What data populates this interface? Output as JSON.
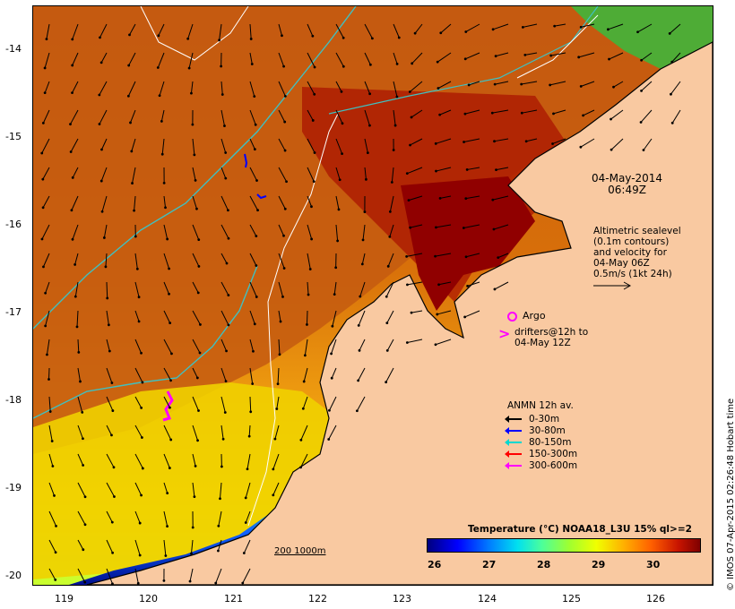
{
  "map": {
    "timestamp_date": "04-May-2014",
    "timestamp_time": "06:49Z",
    "altimetry": {
      "line1": "Altimetric sealevel",
      "line2": "(0.1m contours)",
      "line3": "and velocity for",
      "line4": "04-May 06Z",
      "line5": "0.5m/s (1kt 24h)"
    },
    "argo_label": "Argo",
    "argo_color": "#ff00ff",
    "drifters": {
      "symbol": ">",
      "line1": "drifters@12h to",
      "line2": "04-May 12Z",
      "color": "#ff00ff"
    },
    "anmn": {
      "title": "ANMN 12h av.",
      "items": [
        {
          "label": "0-30m",
          "color": "#000000"
        },
        {
          "label": "30-80m",
          "color": "#0000ff"
        },
        {
          "label": "80-150m",
          "color": "#00d8d0"
        },
        {
          "label": "150-300m",
          "color": "#ff0000"
        },
        {
          "label": "300-600m",
          "color": "#ff00ff"
        }
      ]
    },
    "isobath_label": "200  1000m",
    "isobath_color": "#40c0c0",
    "y_ticks": [
      "-14",
      "-15",
      "-16",
      "-17",
      "-18",
      "-19",
      "-20"
    ],
    "x_ticks": [
      "119",
      "120",
      "121",
      "122",
      "123",
      "124",
      "125",
      "126"
    ],
    "colorbar": {
      "title": "Temperature (°C) NOAA18_L3U 15% ql>=2",
      "ticks": [
        "26",
        "27",
        "28",
        "29",
        "30"
      ]
    },
    "credit": "© IMOS 07-Apr-2015 02:26:48 Hobart time",
    "colors": {
      "land": "#f9c9a1",
      "warm": "#c84a0a",
      "hot": "#9a0000",
      "cool": "#f0e000"
    }
  }
}
